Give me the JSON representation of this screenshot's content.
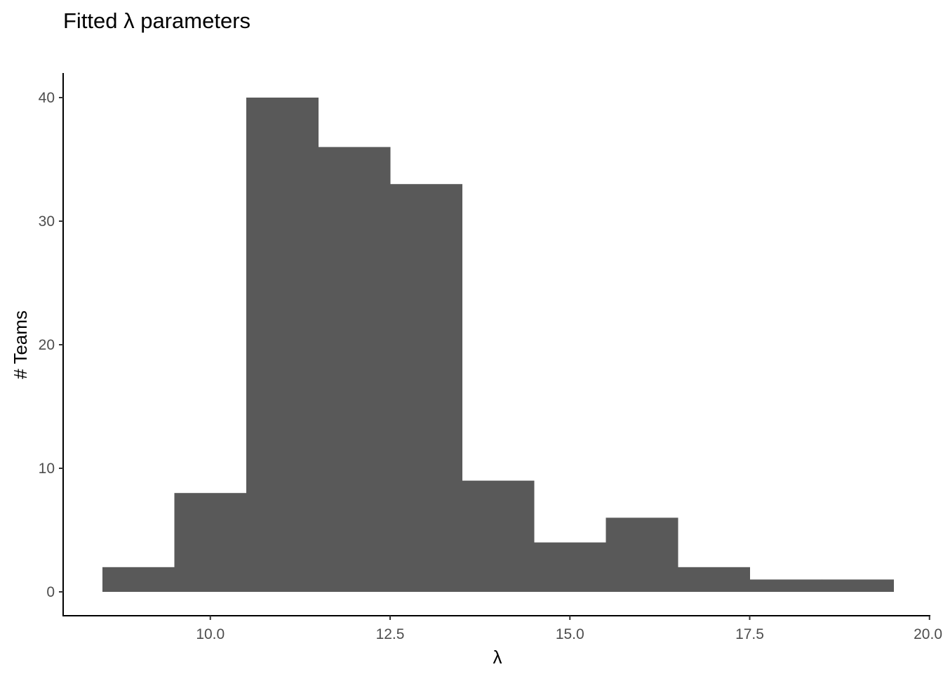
{
  "chart_data": {
    "type": "bar",
    "title": "Fitted λ parameters",
    "xlabel": "λ",
    "ylabel": "# Teams",
    "bin_edges": [
      8.5,
      9.5,
      10.5,
      11.5,
      12.5,
      13.5,
      14.5,
      15.5,
      16.5,
      17.5,
      18.5,
      19.5
    ],
    "values": [
      2,
      8,
      40,
      36,
      33,
      9,
      4,
      6,
      2,
      1,
      1
    ],
    "bar_color": "#595959",
    "xlim": [
      8.5,
      20.0
    ],
    "ylim": [
      0,
      40
    ],
    "x_ticks": [
      10.0,
      12.5,
      15.0,
      17.5,
      20.0
    ],
    "x_tick_labels": [
      "10.0",
      "12.5",
      "15.0",
      "17.5",
      "20.0"
    ],
    "y_ticks": [
      0,
      10,
      20,
      30,
      40
    ],
    "y_tick_labels": [
      "0",
      "10",
      "20",
      "30",
      "40"
    ],
    "grid": false,
    "legend": "none"
  }
}
